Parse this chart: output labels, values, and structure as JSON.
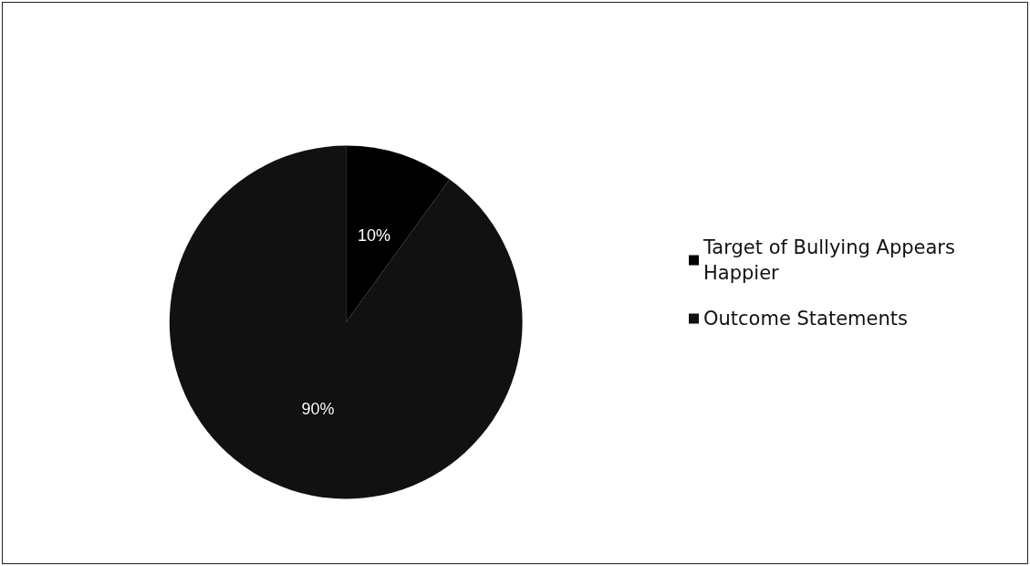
{
  "chart_data": {
    "type": "pie",
    "categories": [
      "Target of Bullying Appears Happier",
      "Outcome Statements"
    ],
    "values": [
      10,
      90
    ],
    "colors": [
      "#000000",
      "#111111"
    ],
    "value_labels": [
      "10%",
      "90%"
    ],
    "legend": "right"
  }
}
